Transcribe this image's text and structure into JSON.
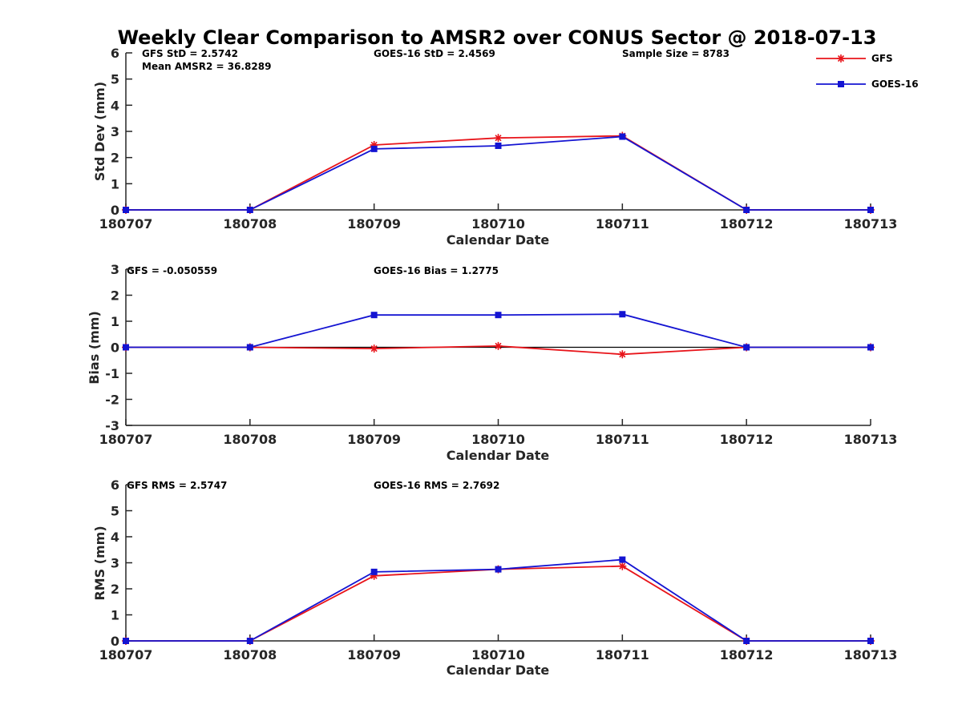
{
  "figure": {
    "title": "Weekly Clear Comparison to AMSR2 over CONUS Sector @ 2018-07-13"
  },
  "legend": {
    "placement": "top-right",
    "entries": [
      {
        "name": "GFS",
        "color": "#e8141a",
        "marker": "asterisk"
      },
      {
        "name": "GOES-16",
        "color": "#1414d2",
        "marker": "square"
      }
    ]
  },
  "chart_data": [
    {
      "type": "line",
      "x": [
        "180707",
        "180708",
        "180709",
        "180710",
        "180711",
        "180712",
        "180713"
      ],
      "xlabel": "Calendar Date",
      "ylabel": "Std Dev (mm)",
      "ylim": [
        0,
        6
      ],
      "yticks": [
        0,
        1,
        2,
        3,
        4,
        5,
        6
      ],
      "zero_line": false,
      "annotations": [
        "GFS StD = 2.5742",
        "Mean AMSR2 = 36.8289",
        "GOES-16 StD = 2.4569",
        "Sample Size = 8783"
      ],
      "series": [
        {
          "name": "GFS",
          "values": [
            0,
            0,
            2.48,
            2.75,
            2.83,
            0,
            0
          ]
        },
        {
          "name": "GOES-16",
          "values": [
            0,
            0,
            2.33,
            2.45,
            2.8,
            0,
            0
          ]
        }
      ]
    },
    {
      "type": "line",
      "x": [
        "180707",
        "180708",
        "180709",
        "180710",
        "180711",
        "180712",
        "180713"
      ],
      "xlabel": "Calendar Date",
      "ylabel": "Bias (mm)",
      "ylim": [
        -3,
        3
      ],
      "yticks": [
        -3,
        -2,
        -1,
        0,
        1,
        2,
        3
      ],
      "zero_line": true,
      "annotations": [
        "GFS = -0.050559",
        "GOES-16 Bias  = 1.2775"
      ],
      "series": [
        {
          "name": "GFS",
          "values": [
            0,
            0,
            -0.05,
            0.05,
            -0.27,
            0,
            0
          ]
        },
        {
          "name": "GOES-16",
          "values": [
            0,
            0,
            1.24,
            1.24,
            1.27,
            0,
            0
          ]
        }
      ]
    },
    {
      "type": "line",
      "x": [
        "180707",
        "180708",
        "180709",
        "180710",
        "180711",
        "180712",
        "180713"
      ],
      "xlabel": "Calendar Date",
      "ylabel": "RMS (mm)",
      "ylim": [
        0,
        6
      ],
      "yticks": [
        0,
        1,
        2,
        3,
        4,
        5,
        6
      ],
      "zero_line": false,
      "annotations": [
        "GFS RMS = 2.5747",
        "GOES-16 RMS = 2.7692"
      ],
      "series": [
        {
          "name": "GFS",
          "values": [
            0,
            0,
            2.5,
            2.75,
            2.87,
            0,
            0
          ]
        },
        {
          "name": "GOES-16",
          "values": [
            0,
            0,
            2.65,
            2.75,
            3.12,
            0,
            0
          ]
        }
      ]
    }
  ]
}
